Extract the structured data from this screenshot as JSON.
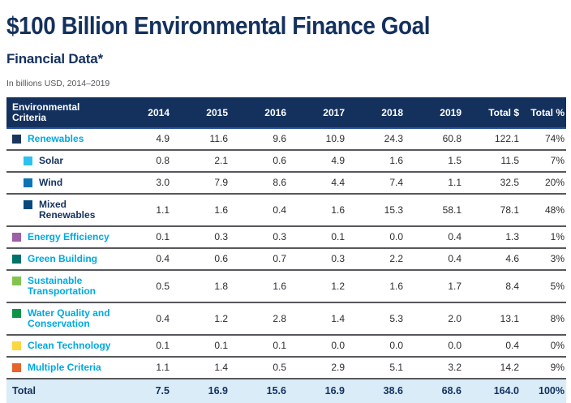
{
  "page": {
    "title": "$100 Billion Environmental Finance Goal",
    "subtitle": "Financial Data*",
    "note": "In billions USD, 2014–2019"
  },
  "colors": {
    "navy": "#14315e",
    "cyan_label": "#00a8e1",
    "header_background": "#14315e",
    "total_row_background": "#d9ecf7",
    "row_separator": "#57585c",
    "number_text": "#2d2d2d"
  },
  "table": {
    "headers": [
      "Environmental Criteria",
      "2014",
      "2015",
      "2016",
      "2017",
      "2018",
      "2019",
      "Total $",
      "Total %"
    ],
    "rows": [
      {
        "label": "Renewables",
        "indent": false,
        "label_style": "cyan",
        "swatch_color": "#1b365e",
        "swatch_name": "renewables-color-swatch",
        "values": [
          "4.9",
          "11.6",
          "9.6",
          "10.9",
          "24.3",
          "60.8",
          "122.1",
          "74%"
        ]
      },
      {
        "label": "Solar",
        "indent": true,
        "label_style": "navy",
        "swatch_color": "#2bc1f0",
        "swatch_name": "solar-color-swatch",
        "values": [
          "0.8",
          "2.1",
          "0.6",
          "4.9",
          "1.6",
          "1.5",
          "11.5",
          "7%"
        ]
      },
      {
        "label": "Wind",
        "indent": true,
        "label_style": "navy",
        "swatch_color": "#0a74b5",
        "swatch_name": "wind-color-swatch",
        "values": [
          "3.0",
          "7.9",
          "8.6",
          "4.4",
          "7.4",
          "1.1",
          "32.5",
          "20%"
        ]
      },
      {
        "label": "Mixed Renewables",
        "indent": true,
        "label_style": "navy",
        "swatch_color": "#07497f",
        "swatch_name": "mixed-renewables-color-swatch",
        "values": [
          "1.1",
          "1.6",
          "0.4",
          "1.6",
          "15.3",
          "58.1",
          "78.1",
          "48%"
        ]
      },
      {
        "label": "Energy Efficiency",
        "indent": false,
        "label_style": "cyan",
        "swatch_color": "#9d5fa6",
        "swatch_name": "energy-efficiency-color-swatch",
        "values": [
          "0.1",
          "0.3",
          "0.3",
          "0.1",
          "0.0",
          "0.4",
          "1.3",
          "1%"
        ]
      },
      {
        "label": "Green Building",
        "indent": false,
        "label_style": "cyan",
        "swatch_color": "#00716b",
        "swatch_name": "green-building-color-swatch",
        "values": [
          "0.4",
          "0.6",
          "0.7",
          "0.3",
          "2.2",
          "0.4",
          "4.6",
          "3%"
        ]
      },
      {
        "label": "Sustainable Transportation",
        "indent": false,
        "label_style": "cyan",
        "swatch_color": "#82c44f",
        "swatch_name": "sustainable-transportation-color-swatch",
        "values": [
          "0.5",
          "1.8",
          "1.6",
          "1.2",
          "1.6",
          "1.7",
          "8.4",
          "5%"
        ]
      },
      {
        "label": "Water Quality and Conservation",
        "indent": false,
        "label_style": "cyan",
        "swatch_color": "#0c9347",
        "swatch_name": "water-quality-color-swatch",
        "values": [
          "0.4",
          "1.2",
          "2.8",
          "1.4",
          "5.3",
          "2.0",
          "13.1",
          "8%"
        ]
      },
      {
        "label": "Clean Technology",
        "indent": false,
        "label_style": "cyan",
        "swatch_color": "#fcd73f",
        "swatch_name": "clean-technology-color-swatch",
        "values": [
          "0.1",
          "0.1",
          "0.1",
          "0.0",
          "0.0",
          "0.0",
          "0.4",
          "0%"
        ]
      },
      {
        "label": "Multiple Criteria",
        "indent": false,
        "label_style": "cyan",
        "swatch_color": "#e7632b",
        "swatch_name": "multiple-criteria-color-swatch",
        "values": [
          "1.1",
          "1.4",
          "0.5",
          "2.9",
          "5.1",
          "3.2",
          "14.2",
          "9%"
        ]
      }
    ],
    "total_row": {
      "label": "Total",
      "values": [
        "7.5",
        "16.9",
        "15.6",
        "16.9",
        "38.6",
        "68.6",
        "164.0",
        "100%"
      ]
    }
  }
}
